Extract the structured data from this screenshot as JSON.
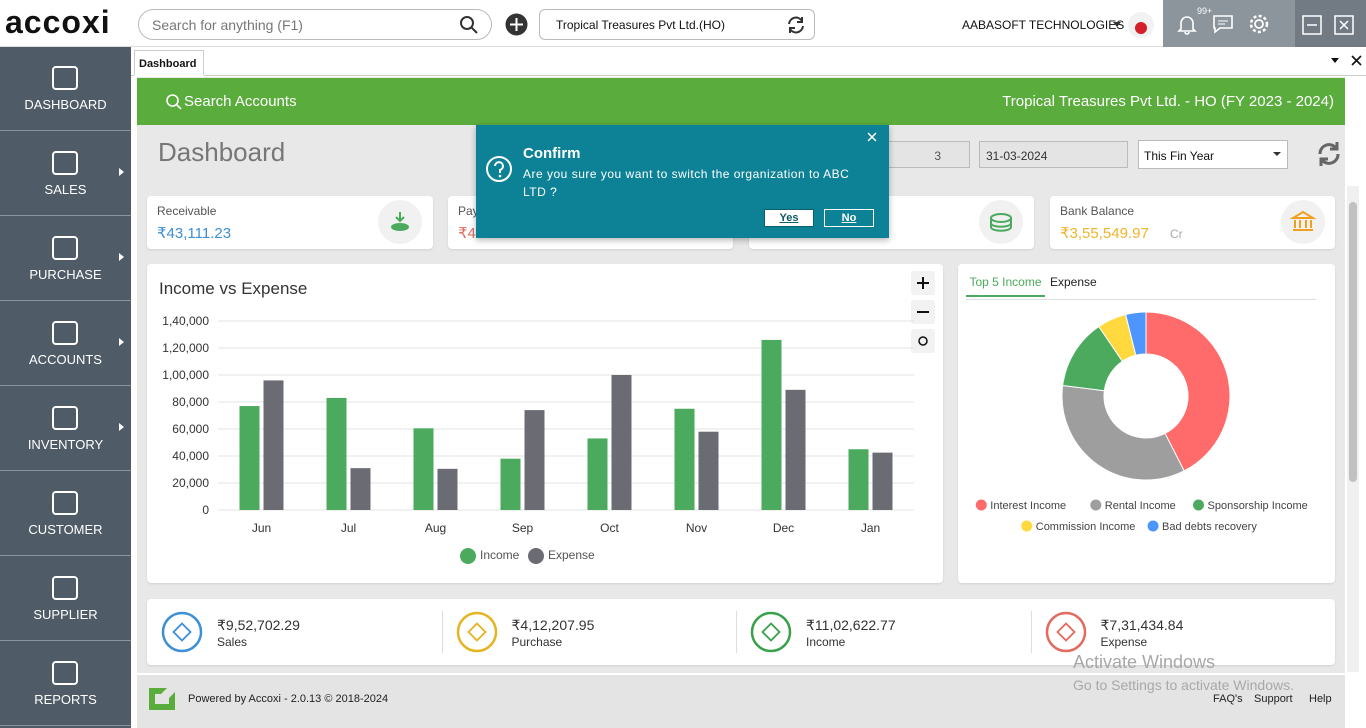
{
  "topbar": {
    "logo": "accoxi",
    "search_placeholder": "Search for anything (F1)",
    "organization": "Tropical Treasures Pvt Ltd.(HO)",
    "user": "AABASOFT TECHNOLOGIES",
    "notification_count": "99+"
  },
  "sidebar": {
    "items": [
      "DASHBOARD",
      "SALES",
      "PURCHASE",
      "ACCOUNTS",
      "INVENTORY",
      "CUSTOMER",
      "SUPPLIER",
      "REPORTS"
    ]
  },
  "tab": "Dashboard",
  "banner": {
    "search": "Search Accounts",
    "company": "Tropical Treasures Pvt Ltd. - HO (FY 2023 - 2024)"
  },
  "page_title": "Dashboard",
  "filters": {
    "from_date": "3",
    "to_date": "31-03-2024",
    "period": "This Fin Year"
  },
  "summary_cards": [
    {
      "label": "Receivable",
      "amount": "₹43,111.23"
    },
    {
      "label": "Pay",
      "amount": "₹4"
    },
    {
      "label": "Bank Balance",
      "amount": "₹3,55,549.97",
      "suffix": "Cr"
    }
  ],
  "dialog": {
    "title": "Confirm",
    "message": "Are you sure you want to switch the organization to ABC LTD ?",
    "yes": "Yes",
    "no": "No"
  },
  "income_tabs": [
    "Top 5 Income",
    "Expense"
  ],
  "chart_data": [
    {
      "type": "bar",
      "title": "Income vs Expense",
      "categories": [
        "Jun",
        "Jul",
        "Aug",
        "Sep",
        "Oct",
        "Nov",
        "Dec",
        "Jan"
      ],
      "series": [
        {
          "name": "Income",
          "color": "#4caa5f",
          "values": [
            77000,
            83000,
            60500,
            38000,
            53000,
            75000,
            126000,
            45000
          ]
        },
        {
          "name": "Expense",
          "color": "#6b6b74",
          "values": [
            96000,
            31000,
            30500,
            74000,
            100000,
            58000,
            89000,
            42500
          ]
        }
      ],
      "ylim": [
        0,
        140000
      ],
      "yticks": [
        0,
        {
          "value": 20000,
          "label": "20,000"
        },
        {
          "value": 40000,
          "label": "40,000"
        },
        {
          "value": 60000,
          "label": "60,000"
        },
        {
          "value": 80000,
          "label": "80,000"
        },
        {
          "value": 100000,
          "label": "1,00,000"
        },
        {
          "value": 120000,
          "label": "1,20,000"
        },
        {
          "value": 140000,
          "label": "1,40,000"
        }
      ],
      "grid": true
    },
    {
      "type": "pie",
      "donut": true,
      "categories": [
        "Interest Income",
        "Rental Income",
        "Sponsorship Income",
        "Commission Income",
        "Bad debts recovery"
      ],
      "values": [
        42.5,
        34.5,
        13.5,
        5.6,
        3.9
      ],
      "colors": [
        "#ff6b6b",
        "#9e9e9e",
        "#4caa5f",
        "#ffd93d",
        "#4d96ff"
      ]
    }
  ],
  "totals": [
    {
      "amount": "₹9,52,702.29",
      "label": "Sales"
    },
    {
      "amount": "₹4,12,207.95",
      "label": "Purchase"
    },
    {
      "amount": "₹11,02,622.77",
      "label": "Income"
    },
    {
      "amount": "₹7,31,434.84",
      "label": "Expense"
    }
  ],
  "footer": {
    "powered": "Powered by Accoxi - 2.0.13 © 2018-2024",
    "links": [
      "FAQ's",
      "Support",
      "Help"
    ]
  },
  "watermark": {
    "title": "Activate Windows",
    "subtitle": "Go to Settings to activate Windows."
  }
}
